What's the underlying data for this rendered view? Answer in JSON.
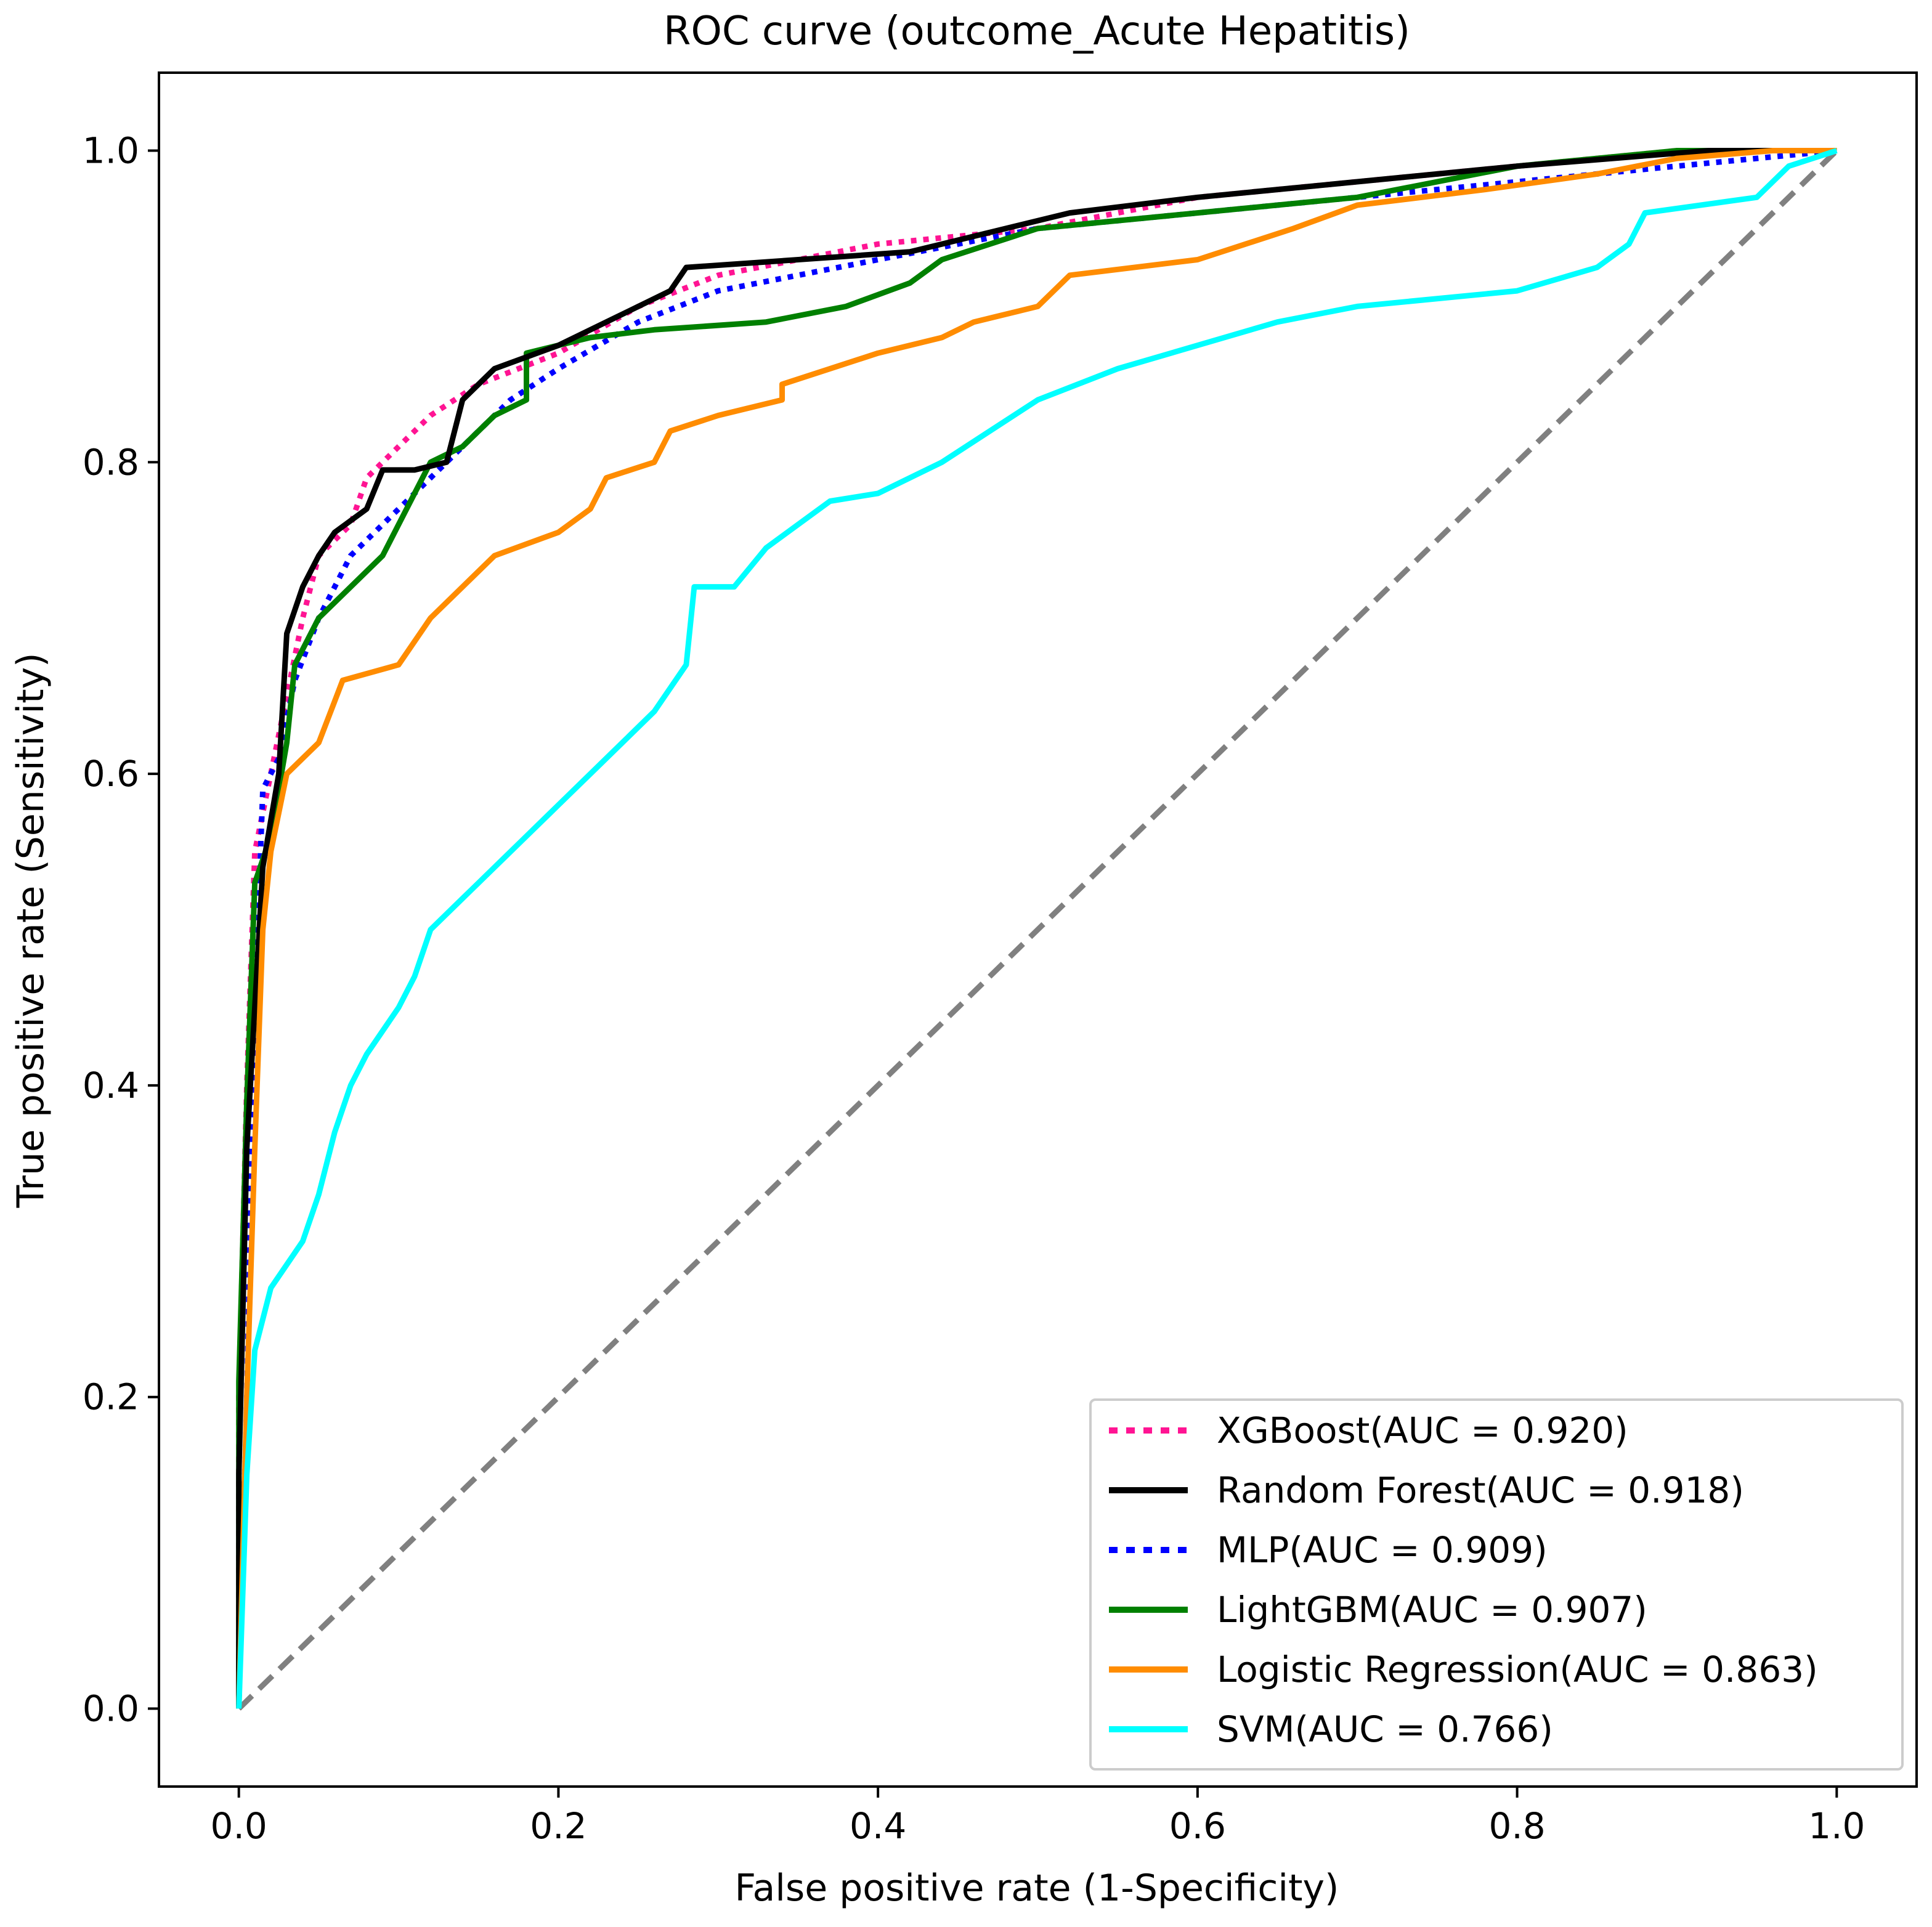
{
  "chart_data": {
    "type": "line",
    "title": "ROC curve (outcome_Acute Hepatitis)",
    "xlabel": "False positive rate (1-Specificity)",
    "ylabel": "True positive rate (Sensitivity)",
    "xlim": [
      -0.05,
      1.05
    ],
    "ylim": [
      -0.05,
      1.05
    ],
    "xticks": [
      "0.0",
      "0.2",
      "0.4",
      "0.6",
      "0.8",
      "1.0"
    ],
    "yticks": [
      "0.0",
      "0.2",
      "0.4",
      "0.6",
      "0.8",
      "1.0"
    ],
    "xtick_values": [
      0,
      0.2,
      0.4,
      0.6,
      0.8,
      1.0
    ],
    "ytick_values": [
      0,
      0.2,
      0.4,
      0.6,
      0.8,
      1.0
    ],
    "grid": false,
    "legend_position": "bottom-right",
    "reference_line": {
      "name": "chance",
      "color": "#808080",
      "style": "dashed",
      "points": [
        [
          0,
          0
        ],
        [
          1,
          1
        ]
      ]
    },
    "series": [
      {
        "name": "XGBoost",
        "label": "XGBoost(AUC = 0.920)",
        "auc": 0.92,
        "color": "#ff1493",
        "style": "dotted",
        "points": [
          [
            0,
            0
          ],
          [
            0,
            0.2
          ],
          [
            0.005,
            0.4
          ],
          [
            0.01,
            0.55
          ],
          [
            0.02,
            0.6
          ],
          [
            0.03,
            0.65
          ],
          [
            0.04,
            0.7
          ],
          [
            0.05,
            0.74
          ],
          [
            0.07,
            0.76
          ],
          [
            0.08,
            0.79
          ],
          [
            0.1,
            0.81
          ],
          [
            0.12,
            0.83
          ],
          [
            0.15,
            0.85
          ],
          [
            0.2,
            0.87
          ],
          [
            0.25,
            0.9
          ],
          [
            0.3,
            0.92
          ],
          [
            0.4,
            0.94
          ],
          [
            0.5,
            0.95
          ],
          [
            0.6,
            0.97
          ],
          [
            0.7,
            0.98
          ],
          [
            0.8,
            0.99
          ],
          [
            0.9,
            1.0
          ],
          [
            1,
            1
          ]
        ]
      },
      {
        "name": "Random Forest",
        "label": "Random Forest(AUC = 0.918)",
        "auc": 0.918,
        "color": "#000000",
        "style": "solid",
        "points": [
          [
            0,
            0
          ],
          [
            0,
            0.15
          ],
          [
            0.005,
            0.36
          ],
          [
            0.015,
            0.54
          ],
          [
            0.025,
            0.6
          ],
          [
            0.03,
            0.69
          ],
          [
            0.04,
            0.72
          ],
          [
            0.05,
            0.74
          ],
          [
            0.06,
            0.755
          ],
          [
            0.08,
            0.77
          ],
          [
            0.09,
            0.795
          ],
          [
            0.11,
            0.795
          ],
          [
            0.13,
            0.8
          ],
          [
            0.14,
            0.84
          ],
          [
            0.16,
            0.86
          ],
          [
            0.2,
            0.875
          ],
          [
            0.23,
            0.89
          ],
          [
            0.27,
            0.91
          ],
          [
            0.28,
            0.925
          ],
          [
            0.35,
            0.93
          ],
          [
            0.42,
            0.935
          ],
          [
            0.48,
            0.95
          ],
          [
            0.52,
            0.96
          ],
          [
            0.6,
            0.97
          ],
          [
            0.7,
            0.98
          ],
          [
            0.8,
            0.99
          ],
          [
            0.92,
            1.0
          ],
          [
            1,
            1
          ]
        ]
      },
      {
        "name": "MLP",
        "label": "MLP(AUC = 0.909)",
        "auc": 0.909,
        "color": "#0000ff",
        "style": "dotted",
        "points": [
          [
            0,
            0
          ],
          [
            0.005,
            0.2
          ],
          [
            0.01,
            0.45
          ],
          [
            0.015,
            0.59
          ],
          [
            0.025,
            0.61
          ],
          [
            0.035,
            0.66
          ],
          [
            0.05,
            0.7
          ],
          [
            0.07,
            0.74
          ],
          [
            0.09,
            0.76
          ],
          [
            0.11,
            0.78
          ],
          [
            0.13,
            0.8
          ],
          [
            0.15,
            0.82
          ],
          [
            0.17,
            0.84
          ],
          [
            0.2,
            0.86
          ],
          [
            0.25,
            0.89
          ],
          [
            0.3,
            0.91
          ],
          [
            0.4,
            0.93
          ],
          [
            0.5,
            0.95
          ],
          [
            0.6,
            0.96
          ],
          [
            0.7,
            0.97
          ],
          [
            0.8,
            0.98
          ],
          [
            0.9,
            0.99
          ],
          [
            1,
            1
          ]
        ]
      },
      {
        "name": "LightGBM",
        "label": "LightGBM(AUC = 0.907)",
        "auc": 0.907,
        "color": "#008000",
        "style": "solid",
        "points": [
          [
            0,
            0
          ],
          [
            0,
            0.21
          ],
          [
            0.005,
            0.39
          ],
          [
            0.01,
            0.53
          ],
          [
            0.02,
            0.56
          ],
          [
            0.03,
            0.62
          ],
          [
            0.035,
            0.67
          ],
          [
            0.05,
            0.7
          ],
          [
            0.07,
            0.72
          ],
          [
            0.09,
            0.74
          ],
          [
            0.1,
            0.76
          ],
          [
            0.12,
            0.8
          ],
          [
            0.14,
            0.81
          ],
          [
            0.16,
            0.83
          ],
          [
            0.18,
            0.84
          ],
          [
            0.18,
            0.87
          ],
          [
            0.22,
            0.88
          ],
          [
            0.26,
            0.885
          ],
          [
            0.33,
            0.89
          ],
          [
            0.38,
            0.9
          ],
          [
            0.42,
            0.915
          ],
          [
            0.44,
            0.93
          ],
          [
            0.5,
            0.95
          ],
          [
            0.6,
            0.96
          ],
          [
            0.7,
            0.97
          ],
          [
            0.8,
            0.99
          ],
          [
            0.9,
            1.0
          ],
          [
            1,
            1
          ]
        ]
      },
      {
        "name": "Logistic Regression",
        "label": "Logistic Regression(AUC = 0.863)",
        "auc": 0.863,
        "color": "#ff8c00",
        "style": "solid",
        "points": [
          [
            0,
            0
          ],
          [
            0.005,
            0.2
          ],
          [
            0.01,
            0.36
          ],
          [
            0.015,
            0.5
          ],
          [
            0.02,
            0.55
          ],
          [
            0.03,
            0.6
          ],
          [
            0.05,
            0.62
          ],
          [
            0.065,
            0.66
          ],
          [
            0.1,
            0.67
          ],
          [
            0.12,
            0.7
          ],
          [
            0.14,
            0.72
          ],
          [
            0.16,
            0.74
          ],
          [
            0.2,
            0.755
          ],
          [
            0.22,
            0.77
          ],
          [
            0.23,
            0.79
          ],
          [
            0.26,
            0.8
          ],
          [
            0.27,
            0.82
          ],
          [
            0.3,
            0.83
          ],
          [
            0.34,
            0.84
          ],
          [
            0.34,
            0.85
          ],
          [
            0.4,
            0.87
          ],
          [
            0.44,
            0.88
          ],
          [
            0.46,
            0.89
          ],
          [
            0.5,
            0.9
          ],
          [
            0.52,
            0.92
          ],
          [
            0.6,
            0.93
          ],
          [
            0.66,
            0.95
          ],
          [
            0.7,
            0.965
          ],
          [
            0.78,
            0.975
          ],
          [
            0.85,
            0.985
          ],
          [
            0.9,
            0.995
          ],
          [
            0.96,
            1.0
          ],
          [
            1,
            1
          ]
        ]
      },
      {
        "name": "SVM",
        "label": "SVM(AUC = 0.766)",
        "auc": 0.766,
        "color": "#00ffff",
        "style": "solid",
        "points": [
          [
            0,
            0
          ],
          [
            0.005,
            0.15
          ],
          [
            0.01,
            0.23
          ],
          [
            0.02,
            0.27
          ],
          [
            0.04,
            0.3
          ],
          [
            0.05,
            0.33
          ],
          [
            0.06,
            0.37
          ],
          [
            0.07,
            0.4
          ],
          [
            0.08,
            0.42
          ],
          [
            0.1,
            0.45
          ],
          [
            0.11,
            0.47
          ],
          [
            0.12,
            0.5
          ],
          [
            0.14,
            0.52
          ],
          [
            0.16,
            0.54
          ],
          [
            0.18,
            0.56
          ],
          [
            0.2,
            0.58
          ],
          [
            0.22,
            0.6
          ],
          [
            0.24,
            0.62
          ],
          [
            0.26,
            0.64
          ],
          [
            0.28,
            0.67
          ],
          [
            0.285,
            0.72
          ],
          [
            0.31,
            0.72
          ],
          [
            0.33,
            0.745
          ],
          [
            0.35,
            0.76
          ],
          [
            0.37,
            0.775
          ],
          [
            0.4,
            0.78
          ],
          [
            0.44,
            0.8
          ],
          [
            0.47,
            0.82
          ],
          [
            0.5,
            0.84
          ],
          [
            0.55,
            0.86
          ],
          [
            0.6,
            0.875
          ],
          [
            0.65,
            0.89
          ],
          [
            0.7,
            0.9
          ],
          [
            0.8,
            0.91
          ],
          [
            0.85,
            0.925
          ],
          [
            0.87,
            0.94
          ],
          [
            0.88,
            0.96
          ],
          [
            0.95,
            0.97
          ],
          [
            0.97,
            0.99
          ],
          [
            1,
            1
          ]
        ]
      }
    ]
  }
}
